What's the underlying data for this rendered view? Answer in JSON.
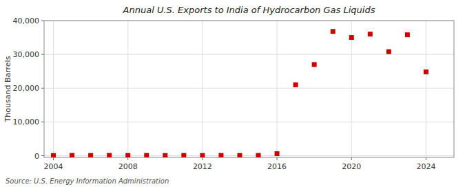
{
  "chart_data": {
    "type": "scatter",
    "title": "Annual U.S. Exports to India of Hydrocarbon Gas Liquids",
    "ylabel": "Thousand Barrels",
    "annotations": [
      "Source: U.S. Energy Information Administration"
    ],
    "x": [
      2004,
      2005,
      2006,
      2007,
      2008,
      2009,
      2010,
      2011,
      2012,
      2013,
      2014,
      2015,
      2016,
      2017,
      2018,
      2019,
      2020,
      2021,
      2022,
      2023,
      2024
    ],
    "values": [
      50,
      80,
      60,
      80,
      60,
      80,
      60,
      80,
      60,
      80,
      60,
      80,
      600,
      21000,
      27000,
      36800,
      35000,
      36000,
      30800,
      35800,
      24800
    ],
    "color": "#cc0000",
    "marker": "square",
    "xlim": [
      2003.5,
      2025.5
    ],
    "ylim": [
      -500,
      40000
    ],
    "xticks": [
      2004,
      2008,
      2012,
      2016,
      2020,
      2024
    ],
    "yticks": [
      0,
      {
        "value": 10000,
        "label": "10,000"
      },
      {
        "value": 20000,
        "label": "20,000"
      },
      {
        "value": 30000,
        "label": "30,000"
      },
      {
        "value": 40000,
        "label": "40,000"
      }
    ],
    "grid": true
  }
}
